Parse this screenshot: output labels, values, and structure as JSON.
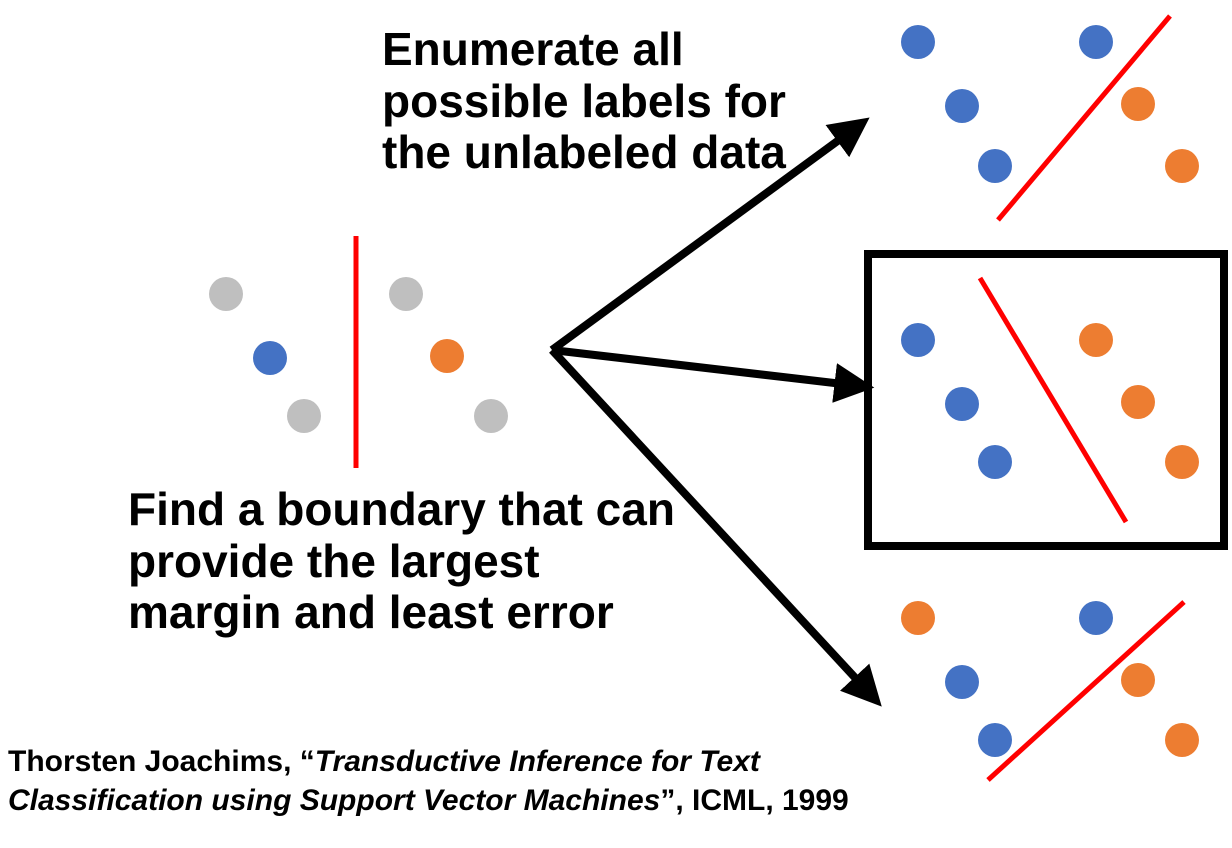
{
  "colors": {
    "gray": "#bfbfbf",
    "blue": "#4472c4",
    "orange": "#ed7d31",
    "boundary": "#ff0000",
    "arrow": "#000000",
    "frame": "#000000"
  },
  "captions": {
    "enumerate": [
      "Enumerate all",
      "possible labels for",
      "the unlabeled data"
    ],
    "boundary": [
      "Find a  boundary that can",
      "provide the largest",
      "margin and  least error"
    ]
  },
  "citation": {
    "line1_author": "Thorsten Joachims, “",
    "line1_title": "Transductive Inference for Text",
    "line2_title": "Classification using Support Vector Machines",
    "line2_venue": "”, ICML, 1999"
  },
  "original_points": [
    "gray",
    "gray",
    "blue",
    "orange",
    "gray",
    "gray"
  ],
  "labelings": [
    {
      "name": "labeling-1",
      "selected": false,
      "points": [
        "blue",
        "blue",
        "blue",
        "orange",
        "blue",
        "orange"
      ]
    },
    {
      "name": "labeling-2",
      "selected": true,
      "points": [
        "blue",
        "orange",
        "blue",
        "orange",
        "blue",
        "orange"
      ]
    },
    {
      "name": "labeling-3",
      "selected": false,
      "points": [
        "orange",
        "blue",
        "blue",
        "orange",
        "blue",
        "orange"
      ]
    }
  ]
}
